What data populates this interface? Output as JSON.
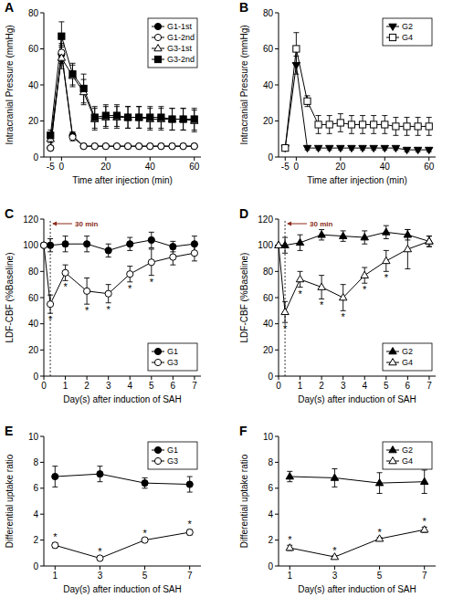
{
  "chart_data": [
    {
      "type": "line",
      "title": "A",
      "x_label": "Time after injection (min)",
      "y_label": "Intracranial Pressure (mmHg)",
      "xlim": [
        -8,
        63
      ],
      "xticks": [
        -5,
        0,
        20,
        40,
        60
      ],
      "ylim": [
        0,
        80
      ],
      "yticks": [
        0,
        20,
        40,
        60,
        80
      ],
      "legend": "top-right",
      "x": [
        -5,
        0,
        5,
        10,
        15,
        20,
        25,
        30,
        35,
        40,
        45,
        50,
        55,
        60
      ],
      "series": [
        {
          "name": "G1-1st",
          "color": "#000000",
          "marker": "filled-circle",
          "values": [
            5,
            57,
            12,
            6,
            6,
            6,
            6,
            6,
            6,
            6,
            6,
            6,
            6,
            6
          ],
          "errors": [
            1,
            5,
            2,
            1,
            1,
            1,
            1,
            1,
            1,
            1,
            1,
            1,
            1,
            1
          ]
        },
        {
          "name": "G1-2nd",
          "color": "#000000",
          "marker": "open-circle",
          "values": [
            5,
            58,
            11,
            6,
            6,
            6,
            6,
            6,
            6,
            6,
            6,
            6,
            6,
            6
          ],
          "errors": [
            1,
            5,
            2,
            1,
            1,
            1,
            1,
            1,
            1,
            1,
            1,
            1,
            1,
            1
          ]
        },
        {
          "name": "G3-1st",
          "color": "#000000",
          "marker": "open-triangle",
          "values": [
            10,
            55,
            45,
            36,
            21,
            22,
            22,
            22,
            22,
            21,
            21,
            21,
            21,
            20
          ],
          "errors": [
            2,
            6,
            6,
            7,
            6,
            6,
            6,
            6,
            6,
            6,
            6,
            6,
            6,
            6
          ]
        },
        {
          "name": "G3-2nd",
          "color": "#000000",
          "marker": "filled-square",
          "values": [
            12,
            67,
            46,
            38,
            22,
            23,
            23,
            22,
            22,
            22,
            22,
            21,
            21,
            21
          ],
          "errors": [
            3,
            8,
            6,
            8,
            6,
            6,
            6,
            6,
            6,
            6,
            6,
            6,
            6,
            6
          ]
        }
      ]
    },
    {
      "type": "line",
      "title": "B",
      "x_label": "Time after injection (min)",
      "y_label": "Intracranial Pressure (mmHg)",
      "xlim": [
        -8,
        63
      ],
      "xticks": [
        -5,
        0,
        20,
        40,
        60
      ],
      "ylim": [
        0,
        80
      ],
      "yticks": [
        0,
        20,
        40,
        60,
        80
      ],
      "legend": "top-right",
      "x": [
        -5,
        0,
        5,
        10,
        15,
        20,
        25,
        30,
        35,
        40,
        45,
        50,
        55,
        60
      ],
      "series": [
        {
          "name": "G2",
          "color": "#000000",
          "marker": "filled-triangle-down",
          "values": [
            5,
            51,
            5,
            5,
            5,
            5,
            5,
            5,
            5,
            5,
            5,
            4,
            4,
            4
          ],
          "errors": [
            1,
            5,
            1,
            1,
            1,
            1,
            1,
            1,
            1,
            1,
            1,
            1,
            1,
            1
          ]
        },
        {
          "name": "G4",
          "color": "#000000",
          "marker": "open-square",
          "values": [
            5,
            60,
            31,
            18,
            18,
            19,
            18,
            18,
            18,
            18,
            17,
            17,
            17,
            17
          ],
          "errors": [
            1,
            9,
            3,
            5,
            5,
            5,
            5,
            5,
            5,
            5,
            5,
            5,
            5,
            5
          ]
        }
      ]
    },
    {
      "type": "line",
      "title": "C",
      "x_label": "Day(s) after induction of SAH",
      "y_label": "LDF-CBF (%Baseline)",
      "xlim": [
        0,
        7.3
      ],
      "xticks": [
        0,
        1,
        2,
        3,
        4,
        5,
        6,
        7
      ],
      "ylim": [
        0,
        120
      ],
      "yticks": [
        0,
        20,
        40,
        60,
        80,
        100,
        120
      ],
      "legend": "bottom-right",
      "annotation": {
        "text": "30 min",
        "x": 0.3
      },
      "x": [
        0,
        0.3,
        1,
        2,
        3,
        4,
        5,
        6,
        7
      ],
      "series": [
        {
          "name": "G1",
          "color": "#000000",
          "marker": "filled-circle",
          "values": [
            100,
            100,
            101,
            101,
            96,
            101,
            104,
            99,
            101
          ],
          "errors": [
            0,
            5,
            6,
            6,
            5,
            5,
            6,
            4,
            6
          ]
        },
        {
          "name": "G3",
          "color": "#000000",
          "marker": "open-circle",
          "values": [
            100,
            55,
            79,
            65,
            63,
            78,
            87,
            91,
            94
          ],
          "errors": [
            0,
            7,
            6,
            10,
            7,
            6,
            10,
            6,
            6
          ],
          "annotations": [
            null,
            "*",
            "*",
            "*",
            "*",
            "*",
            "*",
            null,
            null
          ]
        }
      ]
    },
    {
      "type": "line",
      "title": "D",
      "x_label": "Day(s) after induction of SAH",
      "y_label": "LDF-CBF (%Baseline)",
      "xlim": [
        0,
        7.3
      ],
      "xticks": [
        0,
        1,
        2,
        3,
        4,
        5,
        6,
        7
      ],
      "ylim": [
        0,
        120
      ],
      "yticks": [
        0,
        20,
        40,
        60,
        80,
        100,
        120
      ],
      "legend": "bottom-right",
      "annotation": {
        "text": "30 min",
        "x": 0.3
      },
      "x": [
        0,
        0.3,
        1,
        2,
        3,
        4,
        5,
        6,
        7
      ],
      "series": [
        {
          "name": "G2",
          "color": "#000000",
          "marker": "filled-triangle",
          "values": [
            100,
            100,
            102,
            108,
            107,
            106,
            110,
            108,
            103
          ],
          "errors": [
            0,
            6,
            6,
            4,
            4,
            5,
            5,
            4,
            4
          ]
        },
        {
          "name": "G4",
          "color": "#000000",
          "marker": "open-triangle",
          "values": [
            100,
            49,
            74,
            68,
            60,
            77,
            88,
            97,
            103
          ],
          "errors": [
            0,
            8,
            6,
            9,
            10,
            6,
            8,
            15,
            4
          ],
          "annotations": [
            null,
            "*",
            "*",
            "*",
            "*",
            "*",
            "*",
            null,
            null
          ]
        }
      ]
    },
    {
      "type": "line",
      "title": "E",
      "x_label": "Day(s) after induction of SAH",
      "y_label": "Differential uptake ratio",
      "xlim": [
        0.5,
        7.5
      ],
      "xticks": [
        1,
        3,
        5,
        7
      ],
      "ylim": [
        0,
        10
      ],
      "yticks": [
        0,
        2,
        4,
        6,
        8,
        10
      ],
      "legend": "top-right",
      "x": [
        1,
        3,
        5,
        7
      ],
      "series": [
        {
          "name": "G1",
          "color": "#000000",
          "marker": "filled-circle",
          "values": [
            6.9,
            7.1,
            6.4,
            6.3
          ],
          "errors": [
            0.8,
            0.6,
            0.4,
            0.6
          ]
        },
        {
          "name": "G3",
          "color": "#000000",
          "marker": "open-circle",
          "values": [
            1.6,
            0.6,
            2.0,
            2.6
          ],
          "errors": [
            0.2,
            0.1,
            0.1,
            0.2
          ],
          "annotations": [
            "*",
            "*",
            "*",
            "*"
          ]
        }
      ]
    },
    {
      "type": "line",
      "title": "F",
      "x_label": "Day(s) after induction of SAH",
      "y_label": "Differential uptake ratio",
      "xlim": [
        0.5,
        7.5
      ],
      "xticks": [
        1,
        3,
        5,
        7
      ],
      "ylim": [
        0,
        10
      ],
      "yticks": [
        0,
        2,
        4,
        6,
        8,
        10
      ],
      "legend": "top-right",
      "x": [
        1,
        3,
        5,
        7
      ],
      "series": [
        {
          "name": "G2",
          "color": "#000000",
          "marker": "filled-triangle",
          "values": [
            6.9,
            6.8,
            6.4,
            6.5
          ],
          "errors": [
            0.4,
            0.7,
            0.8,
            0.9
          ]
        },
        {
          "name": "G4",
          "color": "#000000",
          "marker": "open-triangle",
          "values": [
            1.4,
            0.7,
            2.1,
            2.8
          ],
          "errors": [
            0.2,
            0.1,
            0.1,
            0.2
          ],
          "annotations": [
            "*",
            "*",
            "*",
            "*"
          ]
        }
      ]
    }
  ]
}
